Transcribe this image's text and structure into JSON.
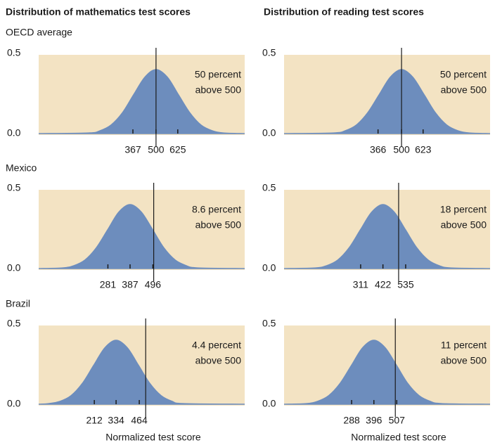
{
  "column_titles": [
    "Distribution of mathematics test scores",
    "Distribution of reading test scores"
  ],
  "row_labels": [
    "OECD average",
    "Mexico",
    "Brazil"
  ],
  "chart_data": [
    {
      "type": "area",
      "color": "#6d8dbd",
      "background": "#f3e3c3",
      "x": [
        -175,
        113,
        178,
        242,
        307,
        371,
        436,
        500,
        565,
        629,
        694,
        758,
        823,
        887,
        1010
      ],
      "values": [
        0,
        0.004,
        0.018,
        0.054,
        0.13,
        0.242,
        0.352,
        0.399,
        0.352,
        0.242,
        0.13,
        0.054,
        0.018,
        0.004,
        0
      ],
      "xlim": [
        -175,
        1010
      ],
      "ylim": [
        0,
        0.5
      ],
      "xticks": [
        367,
        500,
        625
      ],
      "yticks": [
        {
          "value": 0,
          "label": "0.0"
        },
        0.5
      ],
      "vline": 500,
      "annotation": [
        "50 percent",
        "above 500"
      ]
    },
    {
      "type": "area",
      "color": "#6d8dbd",
      "background": "#f3e3c3",
      "x": [
        -170,
        114,
        179,
        243,
        307,
        372,
        436,
        500,
        564,
        629,
        693,
        757,
        821,
        886,
        1005
      ],
      "values": [
        0,
        0.004,
        0.018,
        0.054,
        0.13,
        0.242,
        0.352,
        0.399,
        0.352,
        0.242,
        0.13,
        0.054,
        0.018,
        0.004,
        0
      ],
      "xlim": [
        -170,
        1005
      ],
      "ylim": [
        0,
        0.5
      ],
      "xticks": [
        366,
        500,
        623
      ],
      "yticks": [
        {
          "value": 0,
          "label": "0.0"
        },
        0.5
      ],
      "vline": 500,
      "annotation": [
        "50 percent",
        "above 500"
      ]
    },
    {
      "type": "area",
      "color": "#6d8dbd",
      "background": "#f3e3c3",
      "x": [
        -50,
        64,
        118,
        172,
        226,
        280,
        333,
        387,
        441,
        495,
        548,
        602,
        656,
        710,
        935
      ],
      "values": [
        0,
        0.004,
        0.018,
        0.054,
        0.13,
        0.242,
        0.352,
        0.399,
        0.352,
        0.242,
        0.13,
        0.054,
        0.018,
        0.004,
        0
      ],
      "xlim": [
        -50,
        935
      ],
      "ylim": [
        0,
        0.5
      ],
      "xticks": [
        281,
        387,
        496
      ],
      "yticks": [
        {
          "value": 0,
          "label": "0.0"
        },
        0.5
      ],
      "vline": 500,
      "annotation": [
        "8.6 percent",
        "above 500"
      ]
    },
    {
      "type": "area",
      "color": "#6d8dbd",
      "background": "#f3e3c3",
      "x": [
        -70,
        86,
        142,
        198,
        254,
        310,
        366,
        422,
        478,
        534,
        590,
        646,
        702,
        758,
        955
      ],
      "values": [
        0,
        0.004,
        0.018,
        0.054,
        0.13,
        0.242,
        0.352,
        0.399,
        0.352,
        0.242,
        0.13,
        0.054,
        0.018,
        0.004,
        0
      ],
      "xlim": [
        -70,
        955
      ],
      "ylim": [
        0,
        0.5
      ],
      "xticks": [
        311,
        422,
        535
      ],
      "yticks": [
        {
          "value": 0,
          "label": "0.0"
        },
        0.5
      ],
      "vline": 500,
      "annotation": [
        "18 percent",
        "above 500"
      ]
    },
    {
      "type": "area",
      "color": "#6d8dbd",
      "background": "#f3e3c3",
      "x": [
        -100,
        -44,
        19,
        82,
        145,
        208,
        271,
        334,
        397,
        460,
        523,
        586,
        649,
        712,
        1055
      ],
      "values": [
        0,
        0.004,
        0.018,
        0.054,
        0.13,
        0.242,
        0.352,
        0.399,
        0.352,
        0.242,
        0.13,
        0.054,
        0.018,
        0.004,
        0
      ],
      "xlim": [
        -100,
        1055
      ],
      "ylim": [
        0,
        0.5
      ],
      "xticks": [
        212,
        334,
        464
      ],
      "yticks": [
        {
          "value": 0,
          "label": "0.0"
        },
        0.5
      ],
      "vline": 500,
      "annotation": [
        "4.4 percent",
        "above 500"
      ],
      "xlabel": "Normalized test score"
    },
    {
      "type": "area",
      "color": "#6d8dbd",
      "background": "#f3e3c3",
      "x": [
        -40,
        68,
        122,
        177,
        232,
        287,
        341,
        396,
        451,
        506,
        560,
        615,
        670,
        725,
        960
      ],
      "values": [
        0,
        0.004,
        0.018,
        0.054,
        0.13,
        0.242,
        0.352,
        0.399,
        0.352,
        0.242,
        0.13,
        0.054,
        0.018,
        0.004,
        0
      ],
      "xlim": [
        -40,
        960
      ],
      "ylim": [
        0,
        0.5
      ],
      "xticks": [
        288,
        396,
        507
      ],
      "yticks": [
        {
          "value": 0,
          "label": "0.0"
        },
        0.5
      ],
      "vline": 500,
      "annotation": [
        "11 percent",
        "above 500"
      ],
      "xlabel": "Normalized test score"
    }
  ]
}
